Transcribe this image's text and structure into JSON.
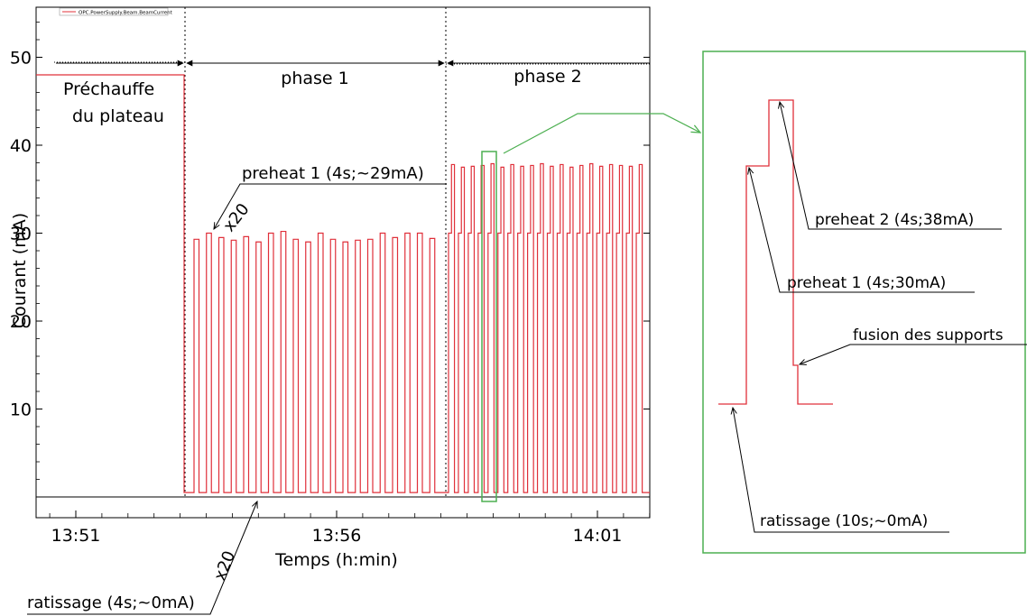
{
  "chart_data": [
    {
      "type": "line",
      "legend": {
        "label": "OPC.PowerSupply.Beam.BeamCurrent",
        "placement": "top-left",
        "color": "#e0303a"
      },
      "xlabel": "Temps (h:min)",
      "ylabel": "Courant (mA)",
      "x_ticks": [
        "13:51",
        "13:56",
        "14:01"
      ],
      "y_ticks": [
        "10",
        "20",
        "30",
        "40",
        "50"
      ],
      "ylim": [
        0,
        55
      ],
      "xlim": [
        "13:50.6",
        "14:01.5"
      ],
      "series_color": "#e0303a",
      "regions": [
        {
          "label": "phase 1",
          "start": "13:52.7",
          "end": "13:57.6"
        },
        {
          "label": "phase 2",
          "start": "13:57.6",
          "end": "14:01.4"
        }
      ],
      "segments": [
        {
          "label": "Préchauffe du plateau",
          "start": "13:50.6",
          "end": "13:52.7",
          "current_mA": 48
        },
        {
          "label": "phase 1 preheat pulses",
          "count": 20,
          "pulse_mA": [
            29.3,
            30.0,
            29.5,
            29.2,
            29.6,
            29.0,
            30.0,
            30.2,
            29.3,
            29.0,
            30.0,
            29.3,
            29.0,
            29.2,
            29.3,
            30.0,
            29.5,
            30.0,
            30.0,
            29.4
          ],
          "baseline_mA": 0.5
        },
        {
          "label": "phase 2 preheat pulses",
          "count": 20,
          "preheat1_mA": 30,
          "preheat2_mA": 38,
          "preheat2_peaks_mA": [
            37.8,
            37.5,
            37.6,
            37.7,
            37.9,
            37.5,
            37.8,
            37.6,
            37.7,
            37.9,
            37.6,
            37.8,
            37.5,
            37.7,
            37.9,
            37.6,
            37.8,
            37.7,
            37.6,
            37.8
          ],
          "baseline_mA": 0.5
        }
      ],
      "annotations": {
        "preheat": "preheat 1 (4s;~29mA)",
        "ratissage": "ratissage (4s;~0mA)",
        "mult_top": "x20",
        "mult_bottom": "x20",
        "plateau_line1": "Préchauffe",
        "plateau_line2": "du plateau",
        "phase1": "phase 1",
        "phase2": "phase 2"
      }
    },
    {
      "type": "line",
      "description_kind": "zoomed inset of one phase 2 cycle",
      "highlight_color": "#4caf50",
      "steps_mA": [
        {
          "label": "ratissage (10s;~0mA)",
          "current_mA": 0
        },
        {
          "label": "preheat 1 (4s;30mA)",
          "current_mA": 30
        },
        {
          "label": "preheat 2 (4s;38mA)",
          "current_mA": 38
        },
        {
          "label": "fusion des supports",
          "current_mA": 12
        }
      ]
    }
  ]
}
